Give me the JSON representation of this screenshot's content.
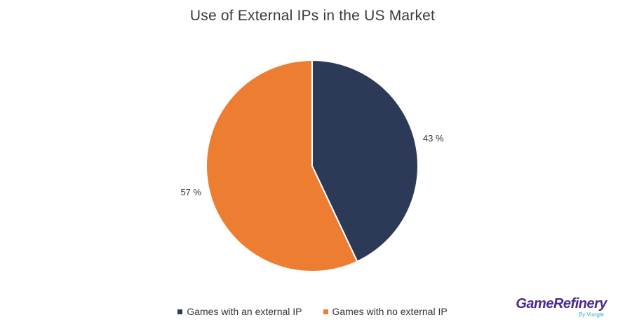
{
  "chart_data": {
    "type": "pie",
    "title": "Use of External IPs in the US Market",
    "slices": [
      {
        "label": "Games with an external IP",
        "value": 43,
        "display": "43 %",
        "color": "#2c3a58"
      },
      {
        "label": "Games with no external IP",
        "value": 57,
        "display": "57 %",
        "color": "#ed7d31"
      }
    ],
    "start_angle": "12 o'clock, clockwise",
    "legend_position": "bottom"
  },
  "logo": {
    "name": "GameRefinery",
    "tagline": "By Vungle"
  }
}
